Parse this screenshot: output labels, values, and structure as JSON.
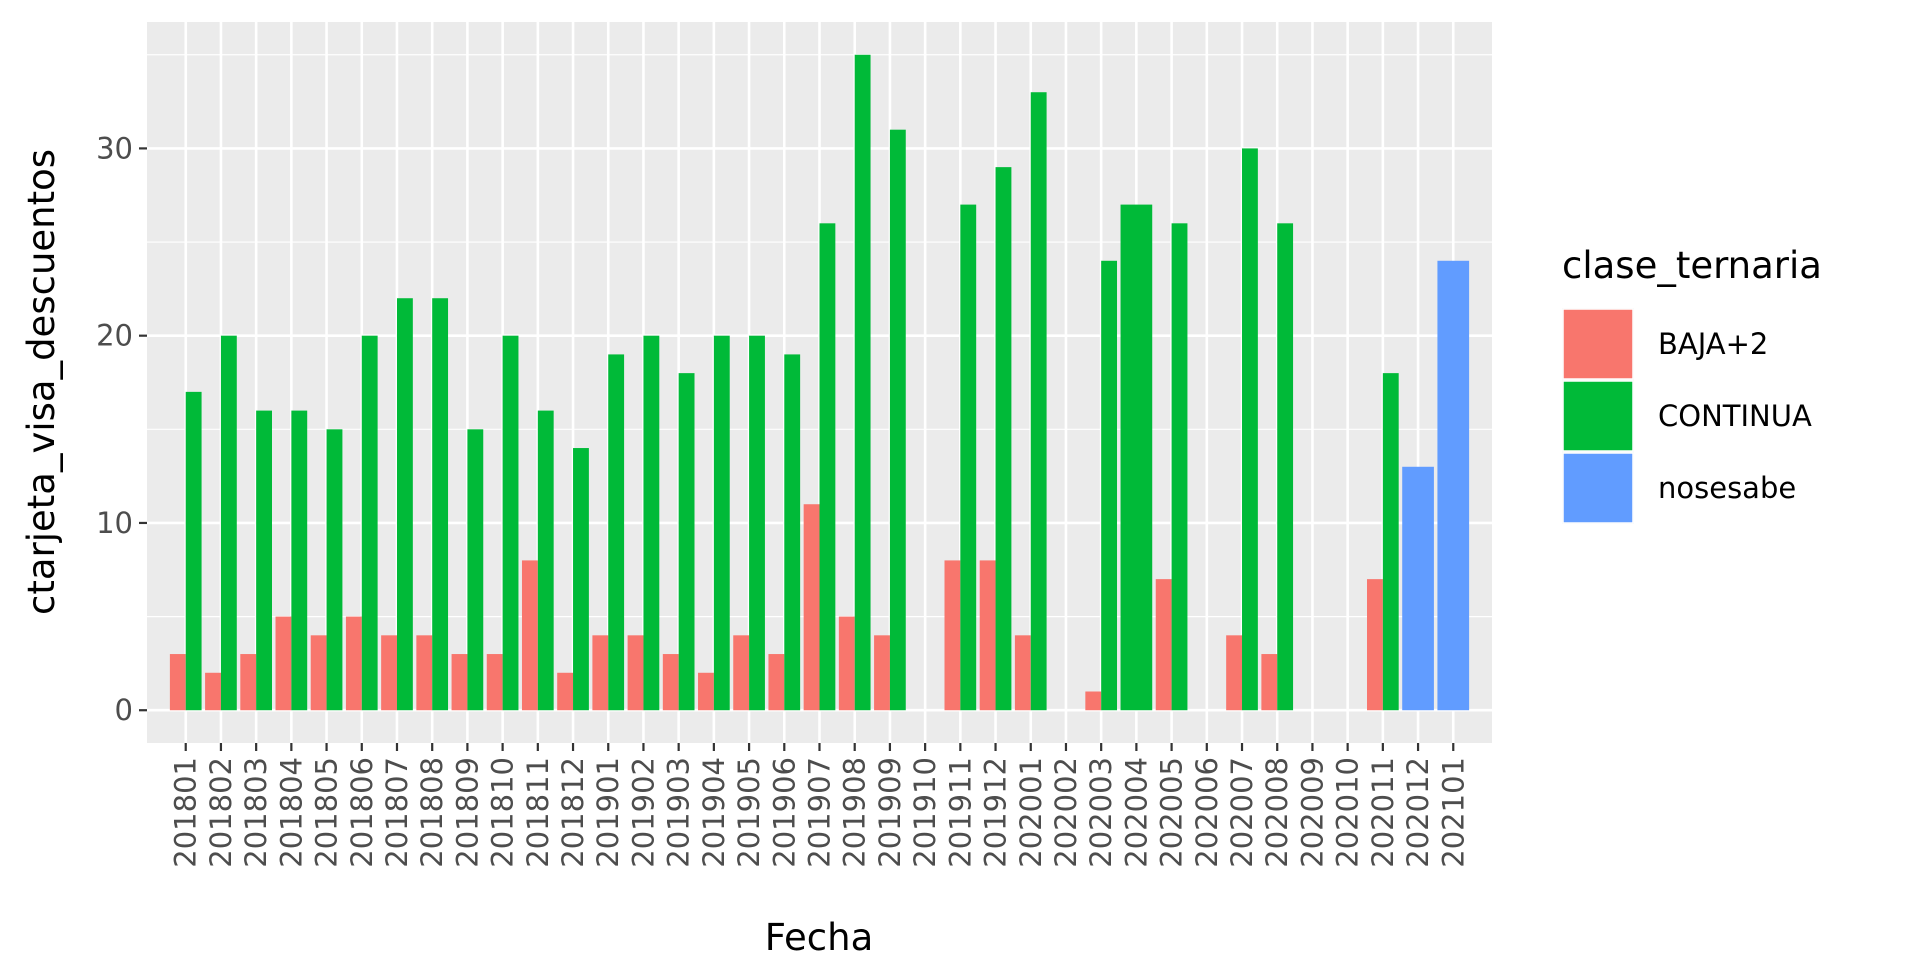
{
  "chart_data": {
    "type": "bar",
    "xlabel": "Fecha",
    "ylabel": "ctarjeta_visa_descuentos",
    "ylim": [
      0,
      36
    ],
    "yticks": [
      0,
      10,
      20,
      30
    ],
    "grid": true,
    "legend_position": "right",
    "legend_title": "clase_ternaria",
    "categories": [
      "201801",
      "201802",
      "201803",
      "201804",
      "201805",
      "201806",
      "201807",
      "201808",
      "201809",
      "201810",
      "201811",
      "201812",
      "201901",
      "201902",
      "201903",
      "201904",
      "201905",
      "201906",
      "201907",
      "201908",
      "201909",
      "201910",
      "201911",
      "201912",
      "202001",
      "202002",
      "202003",
      "202004",
      "202005",
      "202006",
      "202007",
      "202008",
      "202009",
      "202010",
      "202011",
      "202012",
      "202101"
    ],
    "series": [
      {
        "name": "BAJA+2",
        "color": "#F8766D",
        "values": [
          3,
          2,
          3,
          5,
          4,
          5,
          4,
          4,
          3,
          3,
          8,
          2,
          4,
          4,
          3,
          2,
          4,
          3,
          11,
          5,
          4,
          null,
          8,
          8,
          4,
          null,
          1,
          null,
          7,
          null,
          4,
          3,
          null,
          null,
          7,
          null,
          null
        ]
      },
      {
        "name": "CONTINUA",
        "color": "#00BA38",
        "values": [
          17,
          20,
          16,
          16,
          15,
          20,
          22,
          22,
          15,
          20,
          16,
          14,
          19,
          20,
          18,
          20,
          20,
          19,
          26,
          35,
          31,
          null,
          27,
          29,
          33,
          null,
          24,
          27,
          26,
          null,
          30,
          26,
          null,
          null,
          18,
          null,
          null
        ]
      },
      {
        "name": "nosesabe",
        "color": "#619CFF",
        "values": [
          null,
          null,
          null,
          null,
          null,
          null,
          null,
          null,
          null,
          null,
          null,
          null,
          null,
          null,
          null,
          null,
          null,
          null,
          null,
          null,
          null,
          null,
          null,
          null,
          null,
          null,
          null,
          null,
          null,
          null,
          null,
          null,
          null,
          null,
          null,
          13,
          24
        ]
      }
    ]
  }
}
